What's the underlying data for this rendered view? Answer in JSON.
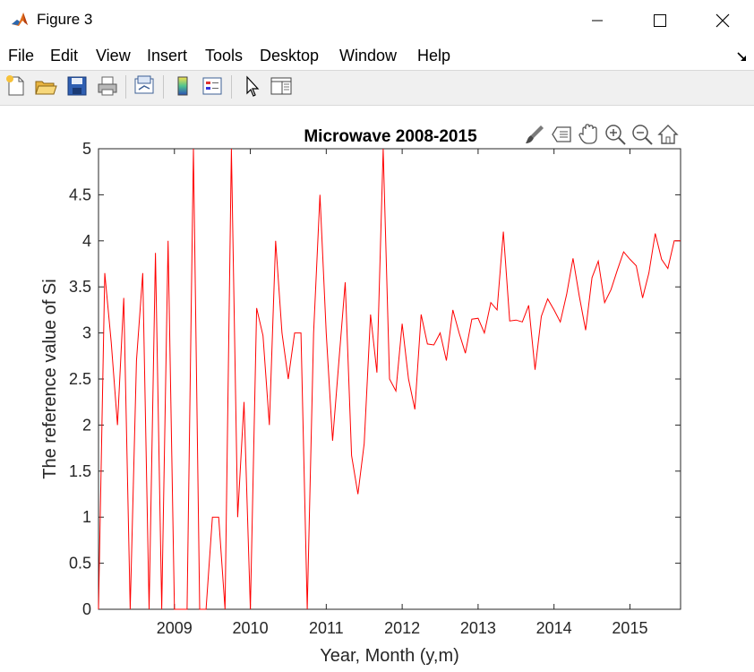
{
  "window": {
    "title": "Figure 3",
    "icon": "matlab-icon"
  },
  "window_controls": [
    "minimize-icon",
    "maximize-icon",
    "close-icon"
  ],
  "menu": [
    "File",
    "Edit",
    "View",
    "Insert",
    "Tools",
    "Desktop",
    "Window",
    "Help"
  ],
  "toolbar": [
    "new-figure-icon",
    "open-file-icon",
    "save-icon",
    "print-icon",
    "link-plot-icon",
    "insert-colorbar-icon",
    "insert-legend-icon",
    "edit-plot-icon",
    "property-inspector-icon"
  ],
  "axes_toolbar": [
    "brush-icon",
    "data-tips-icon",
    "pan-icon",
    "zoom-in-icon",
    "zoom-out-icon",
    "restore-view-icon"
  ],
  "colors": {
    "line": "#ff0000",
    "titlebar": "#ffffff",
    "figure_bg": "#ffffff",
    "toolbar_bg": "#f0f0f0"
  },
  "chart_data": {
    "type": "line",
    "title": "Microwave 2008-2015",
    "xlabel": "Year, Month (y,m)",
    "ylabel": "The reference value of Si",
    "xlim": [
      2008.0,
      2015.667
    ],
    "ylim": [
      0,
      5
    ],
    "xticks": [
      2009,
      2010,
      2011,
      2012,
      2013,
      2014,
      2015
    ],
    "xtick_labels": [
      "2009",
      "2010",
      "2011",
      "2012",
      "2013",
      "2014",
      "2015"
    ],
    "yticks": [
      0,
      0.5,
      1,
      1.5,
      2,
      2.5,
      3,
      3.5,
      4,
      4.5,
      5
    ],
    "ytick_labels": [
      "0",
      "0.5",
      "1",
      "1.5",
      "2",
      "2.5",
      "3",
      "3.5",
      "4",
      "4.5",
      "5"
    ],
    "grid": false,
    "series": [
      {
        "color": "#ff0000",
        "x": [
          2008.0,
          2008.083,
          2008.167,
          2008.25,
          2008.333,
          2008.417,
          2008.5,
          2008.583,
          2008.667,
          2008.75,
          2008.833,
          2008.917,
          2009.0,
          2009.083,
          2009.167,
          2009.25,
          2009.333,
          2009.417,
          2009.5,
          2009.583,
          2009.667,
          2009.75,
          2009.833,
          2009.917,
          2010.0,
          2010.083,
          2010.167,
          2010.25,
          2010.333,
          2010.417,
          2010.5,
          2010.583,
          2010.667,
          2010.75,
          2010.833,
          2010.917,
          2011.0,
          2011.083,
          2011.167,
          2011.25,
          2011.333,
          2011.417,
          2011.5,
          2011.583,
          2011.667,
          2011.75,
          2011.833,
          2011.917,
          2012.0,
          2012.083,
          2012.167,
          2012.25,
          2012.333,
          2012.417,
          2012.5,
          2012.583,
          2012.667,
          2012.75,
          2012.833,
          2012.917,
          2013.0,
          2013.083,
          2013.167,
          2013.25,
          2013.333,
          2013.417,
          2013.5,
          2013.583,
          2013.667,
          2013.75,
          2013.833,
          2013.917,
          2014.0,
          2014.083,
          2014.167,
          2014.25,
          2014.333,
          2014.417,
          2014.5,
          2014.583,
          2014.667,
          2014.75,
          2014.833,
          2014.917,
          2015.0,
          2015.083,
          2015.167,
          2015.25,
          2015.333,
          2015.417,
          2015.5,
          2015.583,
          2015.667
        ],
        "y": [
          0,
          3.65,
          2.9,
          2.0,
          3.38,
          0,
          2.7,
          3.65,
          0,
          3.87,
          0,
          4.0,
          0,
          0,
          0,
          5.0,
          0,
          0,
          1.0,
          1.0,
          0,
          5.0,
          1.0,
          2.25,
          0,
          3.27,
          2.97,
          2.0,
          4.0,
          3.0,
          2.5,
          3.0,
          3.0,
          0,
          3.0,
          4.5,
          3.0,
          1.83,
          2.7,
          3.55,
          1.67,
          1.25,
          1.8,
          3.2,
          2.57,
          5.0,
          2.5,
          2.37,
          3.1,
          2.5,
          2.17,
          3.2,
          2.88,
          2.87,
          3.0,
          2.7,
          3.25,
          3.0,
          2.78,
          3.15,
          3.16,
          3.0,
          3.33,
          3.25,
          4.1,
          3.13,
          3.14,
          3.12,
          3.3,
          2.6,
          3.18,
          3.37,
          3.25,
          3.12,
          3.42,
          3.81,
          3.4,
          3.03,
          3.6,
          3.78,
          3.33,
          3.47,
          3.68,
          3.88,
          3.8,
          3.73,
          3.38,
          3.65,
          4.08,
          3.8,
          3.7,
          4.0,
          4.0
        ]
      }
    ]
  }
}
